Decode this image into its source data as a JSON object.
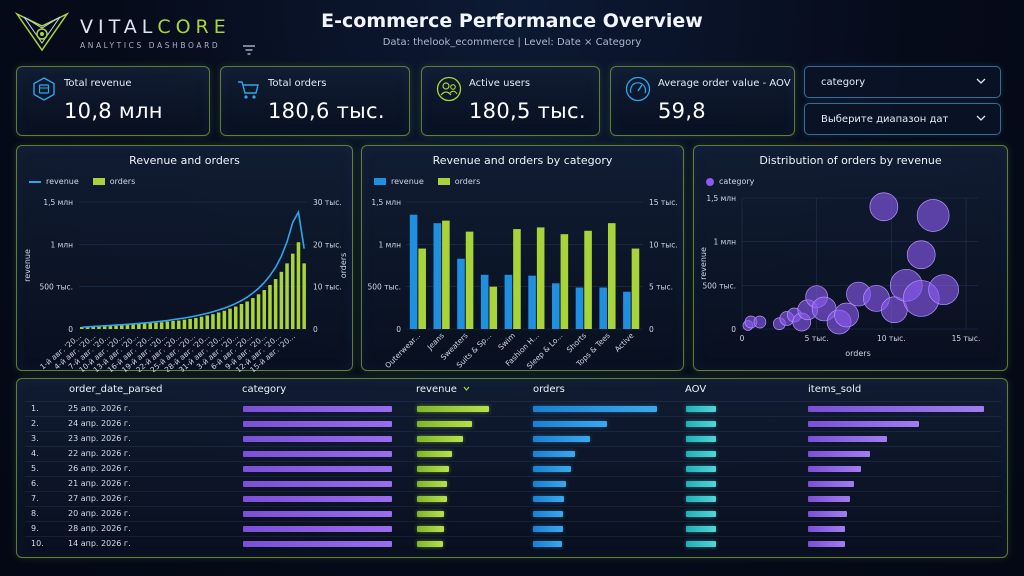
{
  "brand": {
    "name_part1": "VITAL",
    "name_part2": "CORE",
    "subtitle": "ANALYTICS DASHBOARD"
  },
  "header": {
    "title": "E-commerce Performance Overview",
    "subtitle": "Data: thelook_ecommerce | Level: Date × Category"
  },
  "kpis": [
    {
      "label": "Total revenue",
      "value": "10,8 млн",
      "icon": "database-icon"
    },
    {
      "label": "Total orders",
      "value": "180,6 тыс.",
      "icon": "cart-icon"
    },
    {
      "label": "Active users",
      "value": "180,5 тыс.",
      "icon": "users-icon"
    },
    {
      "label": "Average order value - AOV",
      "value": "59,8",
      "icon": "gauge-icon"
    }
  ],
  "filters": {
    "category": "category",
    "date_range": "Выберите диапазон дат"
  },
  "colors": {
    "accent_green": "#a8d43a",
    "accent_blue": "#2ea6ea",
    "accent_purple": "#8a5bf0",
    "accent_teal": "#4fd6d8"
  },
  "chart_data": [
    {
      "type": "bar",
      "title": "Revenue and orders",
      "legend": [
        "revenue",
        "orders"
      ],
      "ylabel": "revenue",
      "y2label": "orders",
      "y_ticks": [
        "0",
        "500 тыс.",
        "1 млн",
        "1,5 млн"
      ],
      "y2_ticks": [
        "0",
        "10 тыс.",
        "20 тыс.",
        "30 тыс."
      ],
      "ylim": [
        0,
        1500000
      ],
      "y2lim": [
        0,
        30000
      ],
      "x_tick_labels": [
        "1-й авг. '20...",
        "4-й авг. '20...",
        "7-й авг. '20...",
        "10-й авг. '20...",
        "13-й авг. '20...",
        "16-й авг. '20...",
        "19-й авг. '20...",
        "22-й авг. '20...",
        "25-й авг. '20...",
        "28-й авг. '20...",
        "31-й авг. '20...",
        "3-й авг. '20...",
        "6-й авг. '20...",
        "9-й авг. '20...",
        "12-й авг. '20...",
        "15-й авг. '20..."
      ],
      "series": [
        {
          "name": "revenue",
          "kind": "line",
          "values": [
            20000,
            25000,
            30000,
            34000,
            38000,
            42000,
            46000,
            50000,
            55000,
            60000,
            66000,
            72000,
            78000,
            85000,
            92000,
            100000,
            110000,
            120000,
            130000,
            142000,
            155000,
            170000,
            186000,
            204000,
            224000,
            246000,
            272000,
            302000,
            336000,
            376000,
            424000,
            480000,
            548000,
            630000,
            730000,
            860000,
            1030000,
            1260000,
            1380000,
            950000
          ]
        },
        {
          "name": "orders",
          "kind": "bar",
          "values": [
            500,
            600,
            700,
            750,
            800,
            850,
            900,
            1000,
            1050,
            1100,
            1200,
            1300,
            1400,
            1500,
            1600,
            1750,
            1900,
            2000,
            2200,
            2400,
            2600,
            2900,
            3200,
            3500,
            3900,
            4300,
            4800,
            5300,
            5900,
            6500,
            7300,
            8200,
            9200,
            10400,
            11800,
            13500,
            15500,
            17800,
            20500,
            15500
          ]
        }
      ]
    },
    {
      "type": "bar",
      "title": "Revenue and orders by category",
      "legend": [
        "revenue",
        "orders"
      ],
      "categories": [
        "Outerwear...",
        "Jeans",
        "Sweaters",
        "Suits & Sp...",
        "Swim",
        "Fashion H...",
        "Sleep & Lo...",
        "Shorts",
        "Tops & Tees",
        "Active"
      ],
      "y_ticks": [
        "0",
        "500 тыс.",
        "1 млн",
        "1,5 млн"
      ],
      "y2_ticks": [
        "0",
        "5 тыс.",
        "10 тыс.",
        "15 тыс."
      ],
      "ylim": [
        0,
        1500000
      ],
      "y2lim": [
        0,
        15000
      ],
      "series": [
        {
          "name": "revenue",
          "axis": "left",
          "values": [
            1350000,
            1250000,
            830000,
            640000,
            640000,
            630000,
            540000,
            490000,
            490000,
            440000
          ]
        },
        {
          "name": "orders",
          "axis": "right",
          "values": [
            9500,
            12800,
            11500,
            5000,
            11800,
            12000,
            11200,
            11600,
            12500,
            9500
          ]
        }
      ]
    },
    {
      "type": "scatter",
      "title": "Distribution of orders by revenue",
      "legend": [
        "category"
      ],
      "xlabel": "orders",
      "ylabel": "revenue",
      "x_ticks": [
        "0",
        "5 тыс.",
        "10 тыс.",
        "15 тыс."
      ],
      "y_ticks": [
        "0",
        "500 тыс.",
        "1 млн",
        "1,5 млн"
      ],
      "xlim": [
        0,
        15000
      ],
      "ylim": [
        0,
        1500000
      ],
      "points": [
        {
          "x": 400,
          "y": 40000,
          "r": 5
        },
        {
          "x": 600,
          "y": 80000,
          "r": 6
        },
        {
          "x": 1200,
          "y": 80000,
          "r": 6
        },
        {
          "x": 2500,
          "y": 60000,
          "r": 6
        },
        {
          "x": 3000,
          "y": 120000,
          "r": 7
        },
        {
          "x": 3500,
          "y": 160000,
          "r": 7
        },
        {
          "x": 4000,
          "y": 80000,
          "r": 9
        },
        {
          "x": 4400,
          "y": 220000,
          "r": 10
        },
        {
          "x": 5000,
          "y": 370000,
          "r": 11
        },
        {
          "x": 5500,
          "y": 230000,
          "r": 12
        },
        {
          "x": 6500,
          "y": 80000,
          "r": 12
        },
        {
          "x": 7000,
          "y": 160000,
          "r": 12
        },
        {
          "x": 7800,
          "y": 400000,
          "r": 12
        },
        {
          "x": 9000,
          "y": 350000,
          "r": 13
        },
        {
          "x": 9500,
          "y": 1400000,
          "r": 14
        },
        {
          "x": 10200,
          "y": 220000,
          "r": 13
        },
        {
          "x": 11000,
          "y": 500000,
          "r": 16
        },
        {
          "x": 12000,
          "y": 350000,
          "r": 18
        },
        {
          "x": 12000,
          "y": 850000,
          "r": 14
        },
        {
          "x": 12800,
          "y": 1300000,
          "r": 16
        },
        {
          "x": 13500,
          "y": 450000,
          "r": 15
        }
      ]
    },
    {
      "type": "table",
      "columns": [
        "order_date_parsed",
        "category",
        "revenue",
        "orders",
        "AOV",
        "items_sold"
      ],
      "sort_indicator_column": "revenue",
      "rows": [
        {
          "idx": "1.",
          "date": "25 апр. 2026 г.",
          "category": 0.93,
          "revenue": 1.0,
          "orders": 1.0,
          "aov": 0.49,
          "items_sold": 1.0
        },
        {
          "idx": "2.",
          "date": "24 апр. 2026 г.",
          "category": 0.93,
          "revenue": 0.77,
          "orders": 0.6,
          "aov": 0.49,
          "items_sold": 0.63
        },
        {
          "idx": "3.",
          "date": "23 апр. 2026 г.",
          "category": 0.93,
          "revenue": 0.64,
          "orders": 0.46,
          "aov": 0.49,
          "items_sold": 0.45
        },
        {
          "idx": "4.",
          "date": "22 апр. 2026 г.",
          "category": 0.93,
          "revenue": 0.49,
          "orders": 0.34,
          "aov": 0.49,
          "items_sold": 0.35
        },
        {
          "idx": "5.",
          "date": "26 апр. 2026 г.",
          "category": 0.93,
          "revenue": 0.45,
          "orders": 0.31,
          "aov": 0.49,
          "items_sold": 0.3
        },
        {
          "idx": "6.",
          "date": "21 апр. 2026 г.",
          "category": 0.93,
          "revenue": 0.42,
          "orders": 0.27,
          "aov": 0.49,
          "items_sold": 0.26
        },
        {
          "idx": "7.",
          "date": "27 апр. 2026 г.",
          "category": 0.93,
          "revenue": 0.41,
          "orders": 0.25,
          "aov": 0.49,
          "items_sold": 0.24
        },
        {
          "idx": "8.",
          "date": "20 апр. 2026 г.",
          "category": 0.93,
          "revenue": 0.38,
          "orders": 0.24,
          "aov": 0.49,
          "items_sold": 0.22
        },
        {
          "idx": "9.",
          "date": "28 апр. 2026 г.",
          "category": 0.93,
          "revenue": 0.37,
          "orders": 0.24,
          "aov": 0.49,
          "items_sold": 0.21
        },
        {
          "idx": "10.",
          "date": "14 апр. 2026 г.",
          "category": 0.93,
          "revenue": 0.36,
          "orders": 0.23,
          "aov": 0.49,
          "items_sold": 0.21
        }
      ]
    }
  ]
}
